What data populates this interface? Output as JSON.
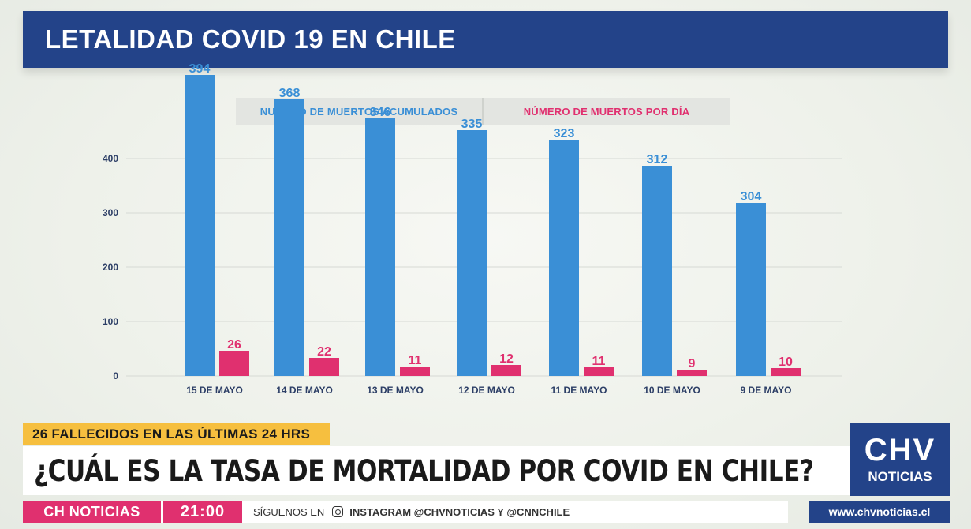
{
  "header": {
    "title": "LETALIDAD COVID 19 EN CHILE"
  },
  "legend": {
    "cumulative_label": "NUMERO DE MUERTOS ACUMULADOS",
    "daily_label": "NÚMERO DE MUERTOS POR DÍA"
  },
  "colors": {
    "title_bg": "#234389",
    "cumulative": "#3a8fd6",
    "daily": "#e0306f",
    "highlight": "#f6bf3f"
  },
  "chart_data": {
    "type": "bar",
    "categories": [
      "15 DE MAYO",
      "14 DE MAYO",
      "13 DE MAYO",
      "12 DE MAYO",
      "11 DE MAYO",
      "10 DE MAYO",
      "9 DE MAYO"
    ],
    "series": [
      {
        "name": "NUMERO DE MUERTOS ACUMULADOS",
        "values": [
          394,
          368,
          346,
          335,
          323,
          312,
          304
        ],
        "bar_heights": [
          382,
          351,
          327,
          312,
          300,
          267,
          220
        ],
        "color": "#3a8fd6"
      },
      {
        "name": "NÚMERO DE MUERTOS POR DÍA",
        "values": [
          26,
          22,
          11,
          12,
          11,
          9,
          10
        ],
        "bar_heights": [
          32,
          23,
          12,
          14,
          11,
          8,
          10
        ],
        "color": "#e0306f"
      }
    ],
    "yticks": [
      0,
      100,
      200,
      300,
      400
    ],
    "ylim": [
      0,
      400
    ],
    "grid": true,
    "legend_position": "top"
  },
  "lower_third": {
    "tag": "26 FALLECIDOS EN LAS ÚLTIMAS 24 HRS",
    "headline": "¿CUÁL ES LA TASA DE MORTALIDAD POR COVID EN CHILE?"
  },
  "ticker": {
    "brand": "CH NOTICIAS",
    "time": "21:00",
    "follow": "SÍGUENOS EN",
    "social": "INSTAGRAM @CHVNOTICIAS Y @CNNCHILE"
  },
  "logo": {
    "main": "CHV",
    "sub": "NOTICIAS"
  },
  "site": "www.chvnoticias.cl"
}
